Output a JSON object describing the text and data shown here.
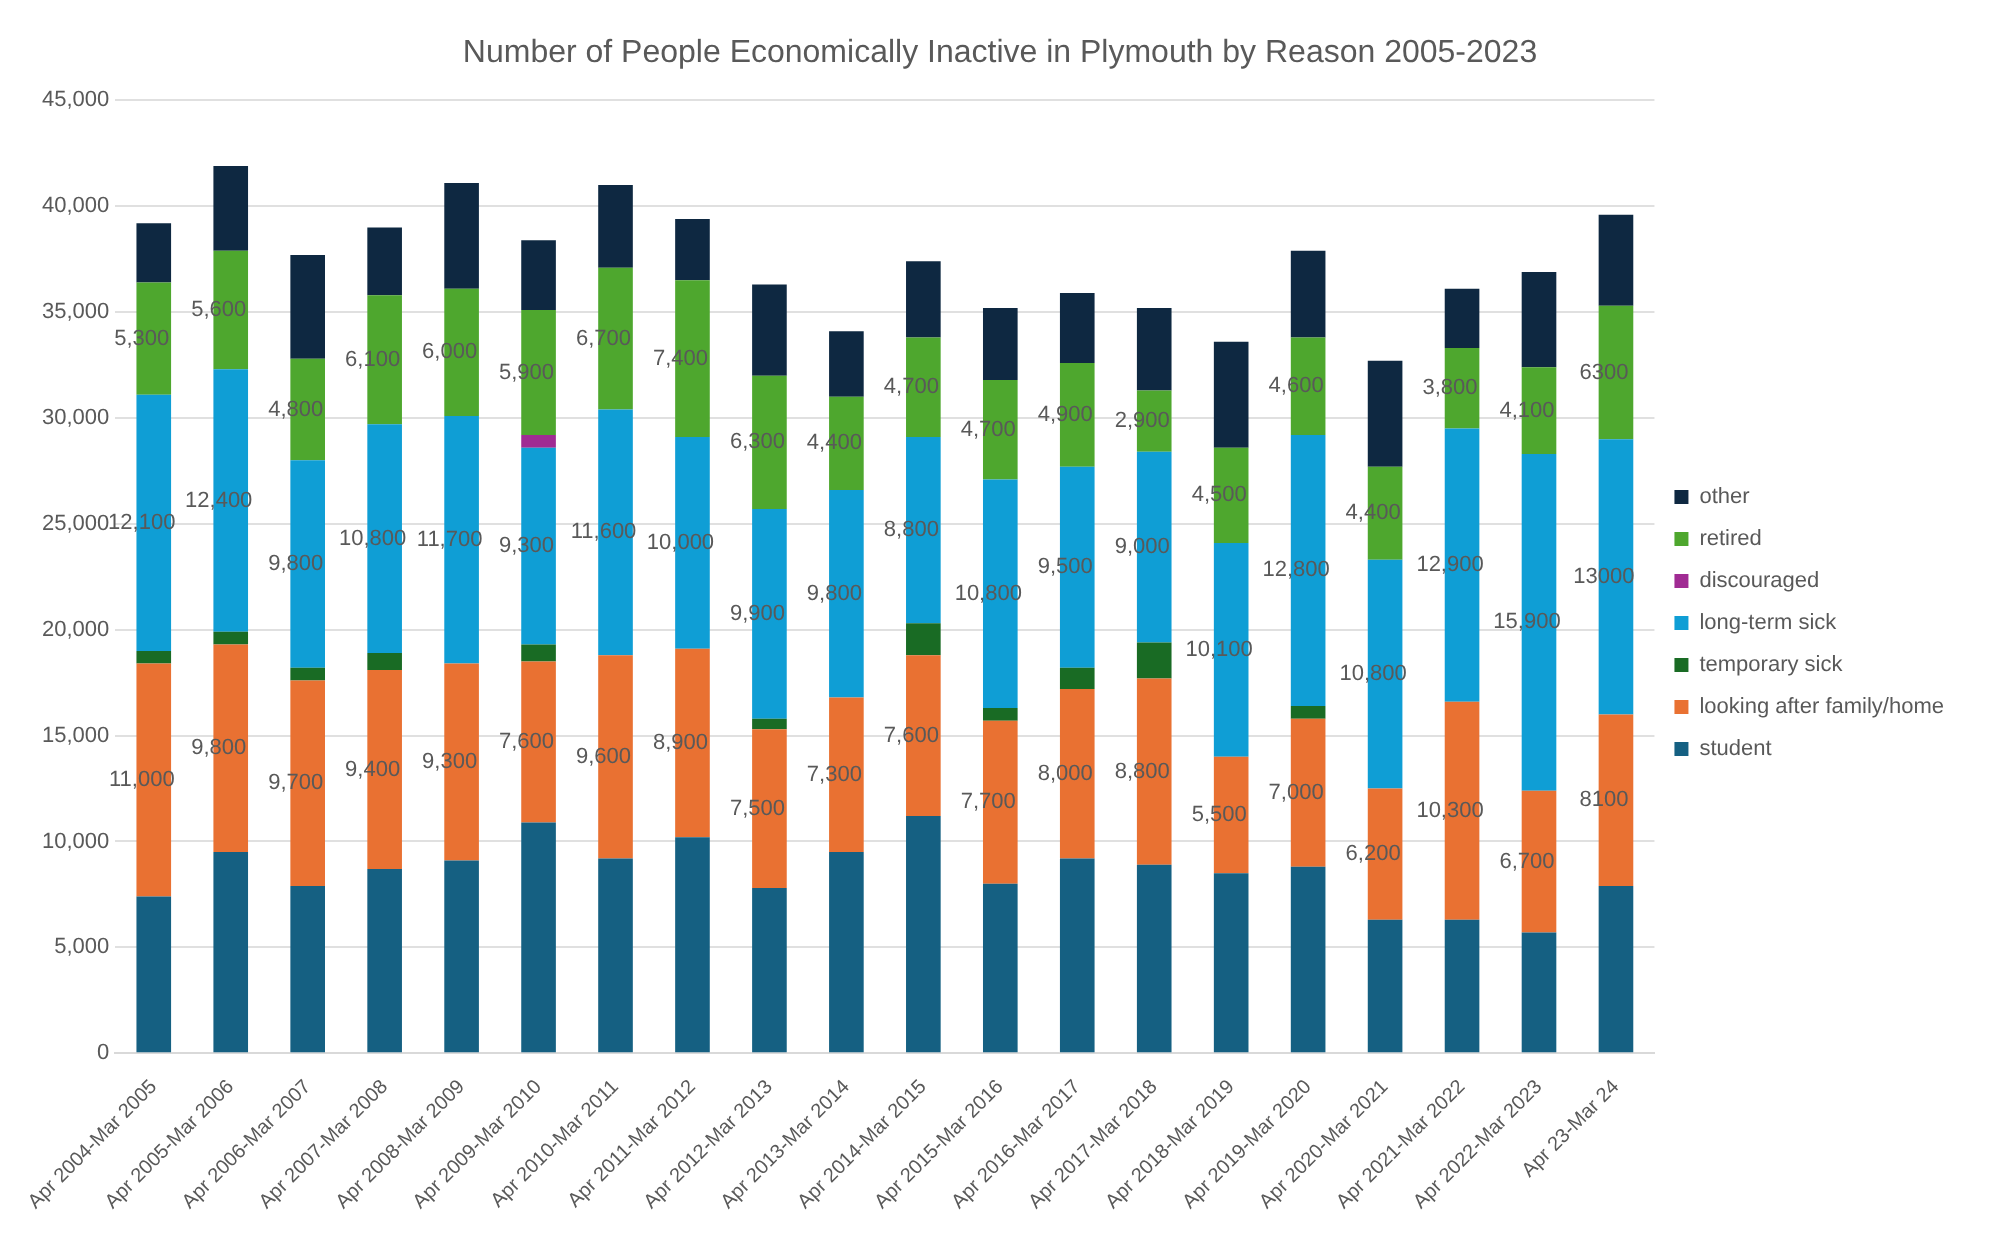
{
  "chart_data": {
    "type": "bar",
    "title": "Number of People Economically Inactive in Plymouth by Reason 2005-2023",
    "categories": [
      "Apr 2004-Mar 2005",
      "Apr 2005-Mar 2006",
      "Apr 2006-Mar 2007",
      "Apr 2007-Mar 2008",
      "Apr 2008-Mar 2009",
      "Apr 2009-Mar 2010",
      "Apr 2010-Mar 2011",
      "Apr 2011-Mar 2012",
      "Apr 2012-Mar 2013",
      "Apr 2013-Mar 2014",
      "Apr 2014-Mar 2015",
      "Apr 2015-Mar 2016",
      "Apr 2016-Mar 2017",
      "Apr 2017-Mar 2018",
      "Apr 2018-Mar 2019",
      "Apr 2019-Mar 2020",
      "Apr 2020-Mar 2021",
      "Apr 2021-Mar 2022",
      "Apr 2022-Mar 2023",
      "Apr 23-Mar 24"
    ],
    "stacked": true,
    "ylim": [
      0,
      45000
    ],
    "yticks": [
      {
        "value": 0,
        "label": "0"
      },
      {
        "value": 5000,
        "label": "5,000"
      },
      {
        "value": 10000,
        "label": "10,000"
      },
      {
        "value": 15000,
        "label": "15,000"
      },
      {
        "value": 20000,
        "label": "20,000"
      },
      {
        "value": 25000,
        "label": "25,000"
      },
      {
        "value": 30000,
        "label": "30,000"
      },
      {
        "value": 35000,
        "label": "35,000"
      },
      {
        "value": 40000,
        "label": "40,000"
      },
      {
        "value": 45000,
        "label": "45,000"
      }
    ],
    "grid": "y",
    "legend": "right",
    "series": [
      {
        "name": "student",
        "color": "#156082",
        "values": [
          7400,
          9500,
          7900,
          8700,
          9100,
          10900,
          9200,
          10200,
          7800,
          9500,
          11200,
          8000,
          9200,
          8900,
          8500,
          8800,
          6300,
          6300,
          5700,
          7900
        ]
      },
      {
        "name": "looking after family/home",
        "color": "#e97132",
        "values": [
          11000,
          9800,
          9700,
          9400,
          9300,
          7600,
          9600,
          8900,
          7500,
          7300,
          7600,
          7700,
          8000,
          8800,
          5500,
          7000,
          6200,
          10300,
          6700,
          8100
        ],
        "value_labels": [
          "11,000",
          "9,800",
          "9,700",
          "9,400",
          "9,300",
          "7,600",
          "9,600",
          "8,900",
          "7,500",
          "7,300",
          "7,600",
          "7,700",
          "8,000",
          "8,800",
          "5,500",
          "7,000",
          "6,200",
          "10,300",
          "6,700",
          "8100"
        ]
      },
      {
        "name": "temporary sick",
        "color": "#196b24",
        "values": [
          600,
          600,
          600,
          800,
          null,
          800,
          null,
          null,
          500,
          null,
          1500,
          600,
          1000,
          1700,
          null,
          600,
          null,
          null,
          null,
          null
        ]
      },
      {
        "name": "long-term sick",
        "color": "#0f9ed5",
        "values": [
          12100,
          12400,
          9800,
          10800,
          11700,
          9300,
          11600,
          10000,
          9900,
          9800,
          8800,
          10800,
          9500,
          9000,
          10100,
          12800,
          10800,
          12900,
          15900,
          13000
        ],
        "value_labels": [
          "12,100",
          "12,400",
          "9,800",
          "10,800",
          "11,700",
          "9,300",
          "11,600",
          "10,000",
          "9,900",
          "9,800",
          "8,800",
          "10,800",
          "9,500",
          "9,000",
          "10,100",
          "12,800",
          "10,800",
          "12,900",
          "15,900",
          "13000"
        ]
      },
      {
        "name": "discouraged",
        "color": "#a02b93",
        "values": [
          null,
          null,
          null,
          null,
          null,
          600,
          null,
          null,
          null,
          null,
          null,
          null,
          null,
          null,
          null,
          null,
          null,
          null,
          null,
          null
        ]
      },
      {
        "name": "retired",
        "color": "#4ea72e",
        "values": [
          5300,
          5600,
          4800,
          6100,
          6000,
          5900,
          6700,
          7400,
          6300,
          4400,
          4700,
          4700,
          4900,
          2900,
          4500,
          4600,
          4400,
          3800,
          4100,
          6300
        ],
        "value_labels": [
          "5,300",
          "5,600",
          "4,800",
          "6,100",
          "6,000",
          "5,900",
          "6,700",
          "7,400",
          "6,300",
          "4,400",
          "4,700",
          "4,700",
          "4,900",
          "2,900",
          "4,500",
          "4,600",
          "4,400",
          "3,800",
          "4,100",
          "6300"
        ]
      },
      {
        "name": "other",
        "color": "#0e2841",
        "values": [
          2800,
          4000,
          4900,
          3200,
          5000,
          3300,
          3900,
          2900,
          4300,
          3100,
          3600,
          3400,
          3300,
          3900,
          5000,
          4100,
          5000,
          2800,
          4500,
          4300
        ]
      }
    ]
  }
}
